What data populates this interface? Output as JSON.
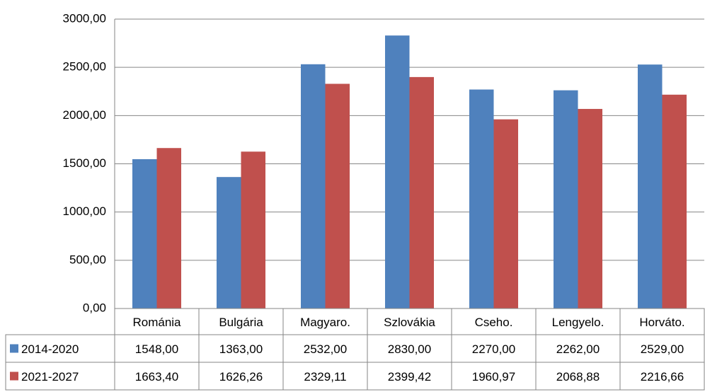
{
  "chart_data": {
    "type": "bar",
    "categories": [
      "Románia",
      "Bulgária",
      "Magyaro.",
      "Szlovákia",
      "Cseho.",
      "Lengyelo.",
      "Horváto."
    ],
    "series": [
      {
        "name": "2014-2020",
        "color": "#4f81bd",
        "values": [
          1548,
          1363,
          2532,
          2830,
          2270,
          2262,
          2529
        ],
        "value_labels": [
          "1548,00",
          "1363,00",
          "2532,00",
          "2830,00",
          "2270,00",
          "2262,00",
          "2529,00"
        ]
      },
      {
        "name": "2021-2027",
        "color": "#c0504d",
        "values": [
          1663.4,
          1626.26,
          2329.11,
          2399.42,
          1960.97,
          2068.88,
          2216.66
        ],
        "value_labels": [
          "1663,40",
          "1626,26",
          "2329,11",
          "2399,42",
          "1960,97",
          "2068,88",
          "2216,66"
        ]
      }
    ],
    "ylim": [
      0,
      3000
    ],
    "yticks": [
      {
        "value": 0,
        "label": "0,00"
      },
      {
        "value": 500,
        "label": "500,00"
      },
      {
        "value": 1000,
        "label": "1000,00"
      },
      {
        "value": 1500,
        "label": "1500,00"
      },
      {
        "value": 2000,
        "label": "2000,00"
      },
      {
        "value": 2500,
        "label": "2500,00"
      },
      {
        "value": 3000,
        "label": "3000,00"
      }
    ],
    "grid": true
  }
}
